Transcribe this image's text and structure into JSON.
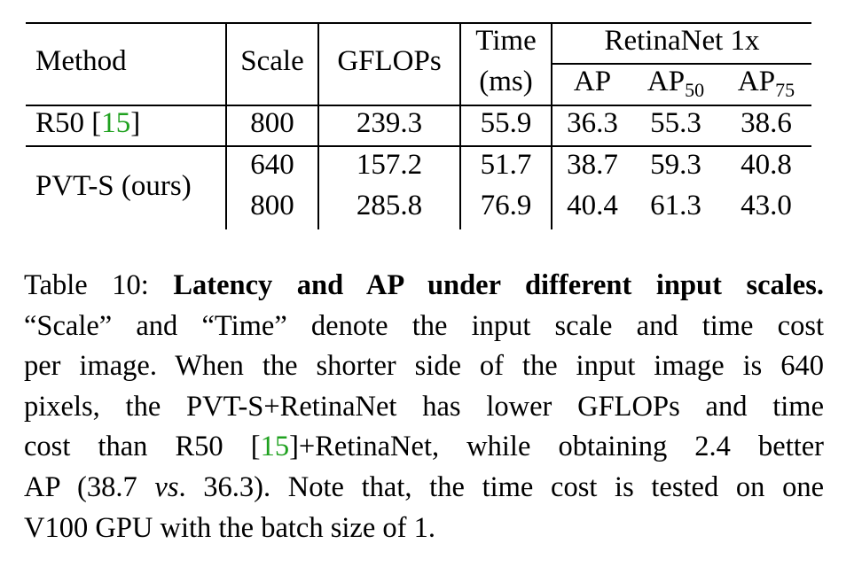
{
  "table": {
    "headers": {
      "method": "Method",
      "scale": "Scale",
      "gflops": "GFLOPs",
      "time_line1": "Time",
      "time_line2": "(ms)",
      "group": "RetinaNet 1x",
      "ap": "AP",
      "ap50_base": "AP",
      "ap50_sub": "50",
      "ap75_base": "AP",
      "ap75_sub": "75"
    },
    "rows": [
      {
        "method": "R50 [",
        "method_cite": "15",
        "method_end": "]",
        "scale": "800",
        "gflops": "239.3",
        "time": "55.9",
        "ap": "36.3",
        "ap50": "55.3",
        "ap75": "38.6"
      },
      {
        "method": "PVT-S (ours)",
        "scale": "640",
        "gflops": "157.2",
        "time": "51.7",
        "ap": "38.7",
        "ap50": "59.3",
        "ap75": "40.8"
      },
      {
        "scale": "800",
        "gflops": "285.8",
        "time": "76.9",
        "ap": "40.4",
        "ap50": "61.3",
        "ap75": "43.0"
      }
    ]
  },
  "caption": {
    "label": "Table 10: ",
    "title": "Latency and AP under different input scales.",
    "l2": "“Scale” and “Time” denote the input scale and time cost",
    "l3": "per image. When the shorter side of the input image is 640",
    "l4": "pixels, the PVT-S+RetinaNet has lower GFLOPs and time",
    "l5a": "cost than R50 [",
    "l5cite": "15",
    "l5b": "]+RetinaNet, while obtaining 2.4 better",
    "l6a": "AP (38.7 ",
    "l6vs": "vs",
    "l6b": ". 36.3). Note that, the time cost is tested on one",
    "l7": "V100 GPU with the batch size of 1."
  },
  "colors": {
    "citation": "#1fa11f"
  }
}
